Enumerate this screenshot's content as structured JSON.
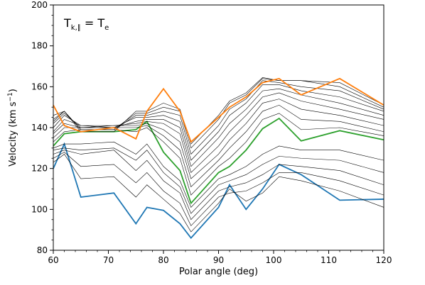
{
  "chart_data": {
    "type": "line",
    "xlabel": "Polar angle (deg)",
    "ylabel_base": "Velocity (km s",
    "ylabel_sup": "−1",
    "ylabel_end": ")",
    "annotation": {
      "main": "T",
      "sub1": "k,∥",
      "eq": " = T",
      "sub2": "e"
    },
    "xlim": [
      60,
      120
    ],
    "ylim": [
      80,
      200
    ],
    "xticks": [
      60,
      70,
      80,
      90,
      100,
      110,
      120
    ],
    "yticks": [
      80,
      100,
      120,
      140,
      160,
      180,
      200
    ],
    "grid": false,
    "x": [
      60,
      62,
      65,
      71,
      75,
      77,
      80,
      83,
      85,
      90,
      92,
      95,
      98,
      101,
      105,
      112,
      120
    ],
    "series": [
      {
        "color": "#1f77b4",
        "width": 1.8,
        "values": [
          120,
          132,
          106,
          108,
          93,
          101,
          99.5,
          93,
          86,
          101,
          112,
          100,
          110,
          122,
          117,
          104.5,
          105
        ]
      },
      {
        "color": "#000000",
        "width": 0.6,
        "values": [
          123,
          127,
          115,
          116,
          106,
          112,
          105,
          98,
          89,
          103,
          110,
          104,
          108,
          116,
          114,
          109,
          101
        ]
      },
      {
        "color": "#000000",
        "width": 0.6,
        "values": [
          125,
          128,
          121,
          122,
          113,
          118,
          109,
          103,
          92,
          106,
          108,
          109,
          113,
          118,
          118,
          114,
          107
        ]
      },
      {
        "color": "#000000",
        "width": 0.6,
        "values": [
          127,
          129,
          127,
          129,
          119,
          124,
          114,
          108,
          95,
          109,
          111,
          113,
          117,
          122,
          121,
          119,
          112
        ]
      },
      {
        "color": "#000000",
        "width": 0.6,
        "values": [
          129,
          130,
          129,
          130,
          124,
          129,
          118,
          111,
          98,
          112,
          114,
          117,
          122,
          126,
          125,
          124,
          118
        ]
      },
      {
        "color": "#000000",
        "width": 0.6,
        "values": [
          130,
          132,
          132,
          133,
          127,
          132,
          121,
          114,
          101,
          115,
          117,
          121,
          127,
          131,
          129,
          129,
          124
        ]
      },
      {
        "color": "#2ca02c",
        "width": 1.8,
        "values": [
          131,
          137,
          138,
          138,
          139,
          143,
          128,
          119,
          103,
          118,
          121,
          129,
          139.5,
          144.5,
          133.5,
          138.5,
          134
        ]
      },
      {
        "color": "#000000",
        "width": 0.6,
        "values": [
          133,
          138,
          139,
          139,
          138,
          140,
          133,
          125,
          107,
          121,
          125,
          133,
          144,
          147,
          139,
          140,
          136
        ]
      },
      {
        "color": "#000000",
        "width": 0.6,
        "values": [
          135,
          140,
          140,
          140,
          140,
          141,
          136,
          129,
          111,
          124,
          130,
          138,
          148,
          151,
          144,
          143,
          138
        ]
      },
      {
        "color": "#000000",
        "width": 0.6,
        "values": [
          137,
          142,
          140,
          141,
          141,
          142,
          139,
          133,
          115,
          127,
          134,
          142,
          152,
          154,
          149,
          146,
          141
        ]
      },
      {
        "color": "#000000",
        "width": 0.6,
        "values": [
          138,
          144,
          141,
          141,
          142,
          143,
          142,
          137,
          118,
          131,
          138,
          146,
          155,
          157,
          153,
          149,
          144
        ]
      },
      {
        "color": "#000000",
        "width": 0.6,
        "values": [
          140,
          146,
          141,
          140,
          143,
          144,
          144,
          140,
          121,
          135,
          142,
          149,
          158,
          159,
          156,
          152,
          146
        ]
      },
      {
        "color": "#000000",
        "width": 0.6,
        "values": [
          142,
          147,
          140,
          140,
          145,
          145,
          146,
          143,
          124,
          138,
          146,
          152,
          161,
          161,
          158,
          155,
          148
        ]
      },
      {
        "color": "#000000",
        "width": 0.6,
        "values": [
          143,
          148,
          139,
          139,
          146,
          146,
          148,
          146,
          127,
          141,
          149,
          154,
          163,
          162,
          160,
          158,
          149
        ]
      },
      {
        "color": "#000000",
        "width": 0.6,
        "values": [
          144,
          148,
          139,
          139,
          147,
          147,
          150,
          148,
          130,
          144,
          152,
          156,
          164,
          163,
          163,
          160,
          150
        ]
      },
      {
        "color": "#000000",
        "width": 0.6,
        "values": [
          146,
          148,
          138,
          138,
          148,
          148,
          152,
          149,
          132,
          146,
          153,
          157,
          164.5,
          163,
          163,
          162,
          151
        ]
      },
      {
        "color": "#ff7f0e",
        "width": 1.8,
        "values": [
          151,
          141,
          138,
          140,
          134.5,
          148,
          159,
          148,
          133,
          145,
          150,
          155,
          162,
          164,
          156,
          164,
          151
        ]
      }
    ]
  }
}
